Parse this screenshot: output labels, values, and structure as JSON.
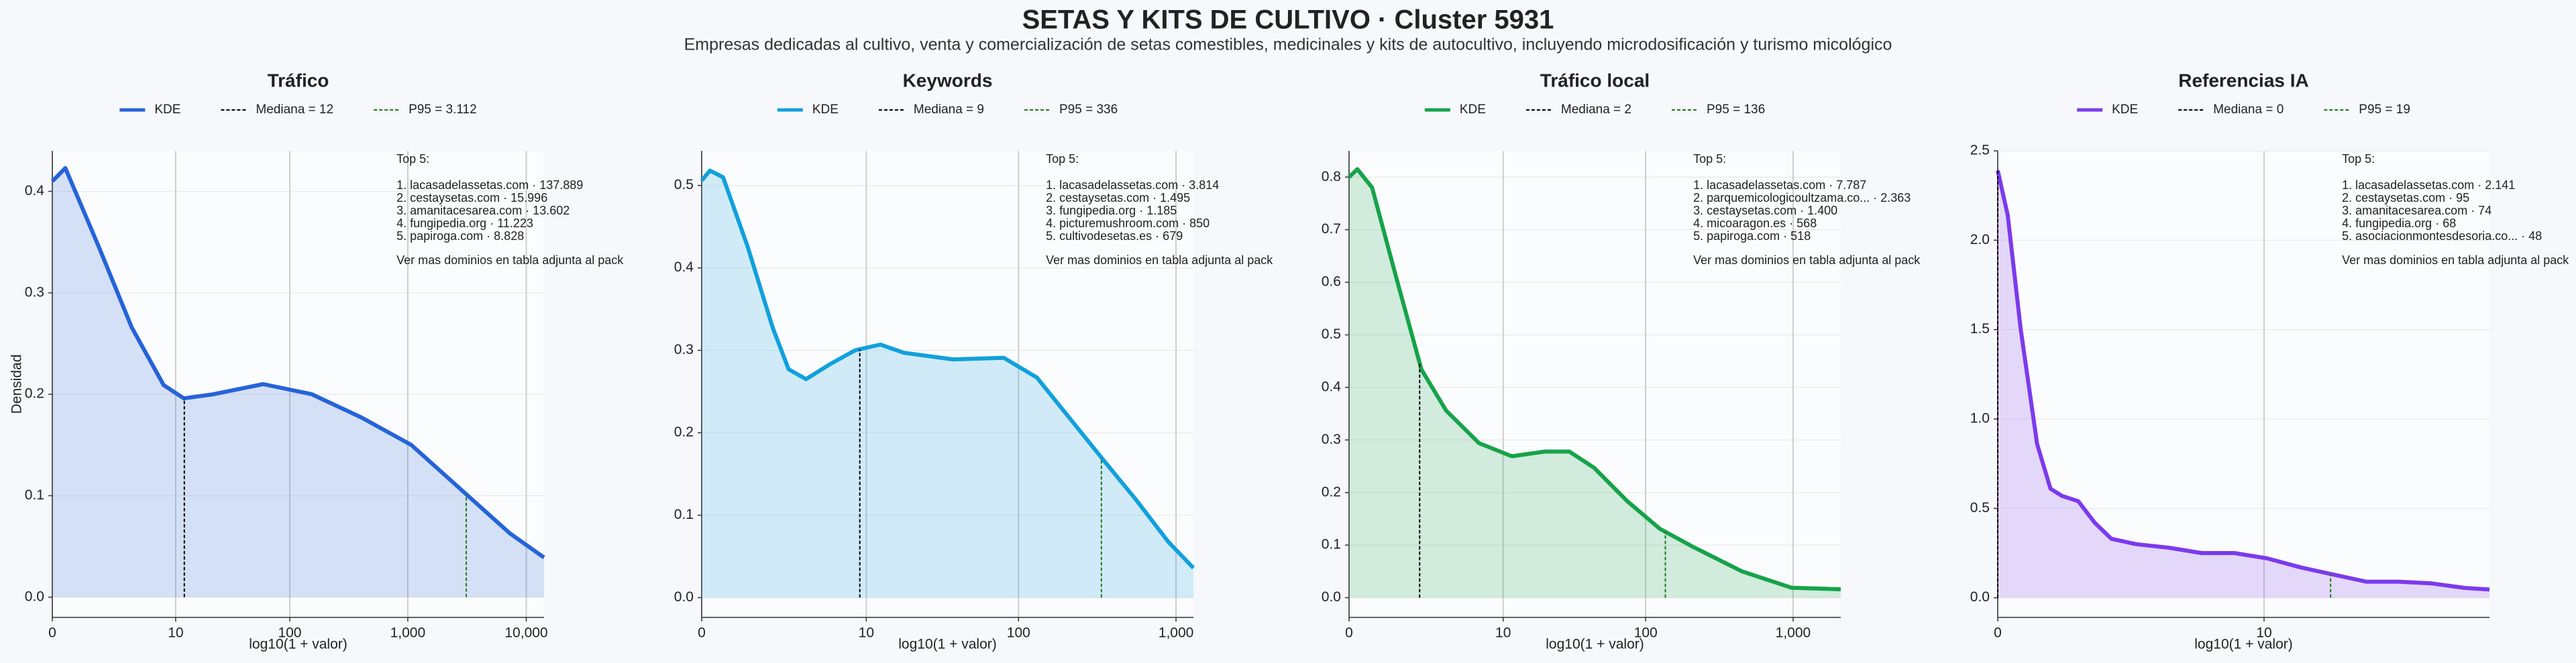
{
  "title": "SETAS Y KITS DE CULTIVO · Cluster 5931",
  "subtitle": "Empresas dedicadas al cultivo, venta y comercialización de setas comestibles, medicinales y kits de autocultivo, incluyendo microdosificación y turismo micológico",
  "chart_data": [
    {
      "type": "line",
      "title": "Tráfico",
      "xlabel": "log10(1 + valor)",
      "ylabel": "Densidad",
      "series": [
        {
          "name": "KDE",
          "color": "#2563d9",
          "x": [
            0,
            0.11,
            0.39,
            0.67,
            0.94,
            1.11,
            1.36,
            1.78,
            2.19,
            2.61,
            3.03,
            3.44,
            3.86,
            4.15
          ],
          "values": [
            0.41,
            0.423,
            0.346,
            0.266,
            0.209,
            0.196,
            0.2,
            0.21,
            0.2,
            0.177,
            0.15,
            0.107,
            0.063,
            0.039
          ]
        }
      ],
      "median": {
        "value": 1.114,
        "label": "Mediana = 12",
        "color": "#000000"
      },
      "p95": {
        "value": 3.493,
        "label": "P95 = 3.112",
        "color": "#1a7a1a"
      },
      "xlim": [
        0,
        4.15
      ],
      "xticks": [
        0,
        {
          "value": 1.041,
          "label": "10"
        },
        {
          "value": 2.004,
          "label": "100"
        },
        {
          "value": 3.0,
          "label": "1,000"
        },
        {
          "value": 4.0,
          "label": "10,000"
        }
      ],
      "ylim": [
        -0.02,
        0.44
      ],
      "yticks": [
        {
          "value": 0,
          "label": "0.0"
        },
        0.1,
        0.2,
        0.3,
        0.4
      ],
      "annotation": {
        "title": "Top 5:",
        "lines": [
          "1. lacasadelassetas.com · 137.889",
          "2. cestaysetas.com · 15.996",
          "3. amanitacesarea.com · 13.602",
          "4. fungipedia.org · 11.223",
          "5. papiroga.com · 8.828"
        ],
        "footer": "Ver mas dominios en tabla adjunta al pack"
      }
    },
    {
      "type": "line",
      "title": "Keywords",
      "xlabel": "log10(1 + valor)",
      "series": [
        {
          "name": "KDE",
          "color": "#12a0dc",
          "x": [
            0,
            0.052,
            0.135,
            0.29,
            0.45,
            0.55,
            0.66,
            0.81,
            0.97,
            1.13,
            1.28,
            1.59,
            1.91,
            2.12,
            2.33,
            2.54,
            2.75,
            2.95,
            3.11
          ],
          "values": [
            0.506,
            0.518,
            0.51,
            0.426,
            0.327,
            0.277,
            0.265,
            0.283,
            0.3,
            0.307,
            0.297,
            0.289,
            0.291,
            0.267,
            0.217,
            0.167,
            0.118,
            0.068,
            0.036
          ]
        }
      ],
      "median": {
        "value": 1.0,
        "label": "Mediana = 9",
        "color": "#000000"
      },
      "p95": {
        "value": 2.528,
        "label": "P95 = 336",
        "color": "#1a7a1a"
      },
      "xlim": [
        0,
        3.11
      ],
      "xticks": [
        0,
        {
          "value": 1.041,
          "label": "10"
        },
        {
          "value": 2.004,
          "label": "100"
        },
        {
          "value": 3.0,
          "label": "1,000"
        }
      ],
      "ylim": [
        -0.024,
        0.542
      ],
      "yticks": [
        {
          "value": 0,
          "label": "0.0"
        },
        0.1,
        0.2,
        0.3,
        0.4,
        0.5
      ],
      "annotation": {
        "title": "Top 5:",
        "lines": [
          "1. lacasadelassetas.com · 3.814",
          "2. cestaysetas.com · 1.495",
          "3. fungipedia.org · 1.185",
          "4. picturemushroom.com · 850",
          "5. cultivodesetas.es · 679"
        ],
        "footer": "Ver mas dominios en tabla adjunta al pack"
      }
    },
    {
      "type": "line",
      "title": "Tráfico local",
      "xlabel": "log10(1 + valor)",
      "series": [
        {
          "name": "KDE",
          "color": "#16a34a",
          "x": [
            0,
            0.056,
            0.156,
            0.322,
            0.489,
            0.656,
            0.878,
            1.1,
            1.322,
            1.489,
            1.656,
            1.878,
            2.1,
            2.322,
            2.656,
            2.989,
            3.322
          ],
          "values": [
            0.8,
            0.815,
            0.78,
            0.606,
            0.434,
            0.356,
            0.294,
            0.269,
            0.278,
            0.278,
            0.247,
            0.184,
            0.131,
            0.097,
            0.05,
            0.019,
            0.016
          ]
        }
      ],
      "median": {
        "value": 0.477,
        "label": "Mediana = 2",
        "color": "#000000"
      },
      "p95": {
        "value": 2.137,
        "label": "P95 = 136",
        "color": "#1a7a1a"
      },
      "xlim": [
        0,
        3.322
      ],
      "xticks": [
        0,
        {
          "value": 1.041,
          "label": "10"
        },
        {
          "value": 2.004,
          "label": "100"
        },
        {
          "value": 3.0,
          "label": "1,000"
        }
      ],
      "ylim": [
        -0.0375,
        0.85
      ],
      "yticks": [
        {
          "value": 0,
          "label": "0.0"
        },
        0.1,
        0.2,
        0.3,
        0.4,
        0.5,
        0.6,
        0.7,
        0.8
      ],
      "annotation": {
        "title": "Top 5:",
        "lines": [
          "1. lacasadelassetas.com · 7.787",
          "2. parquemicologicoultzama.co... · 2.363",
          "3. cestaysetas.com · 1.400",
          "4. micoaragon.es · 568",
          "5. papiroga.com · 518"
        ],
        "footer": "Ver mas dominios en tabla adjunta al pack"
      }
    },
    {
      "type": "line",
      "title": "Referencias IA",
      "xlabel": "log10(1 + valor)",
      "series": [
        {
          "name": "KDE",
          "color": "#7c3aed",
          "x": [
            0,
            0.039,
            0.09,
            0.154,
            0.206,
            0.251,
            0.315,
            0.379,
            0.444,
            0.54,
            0.668,
            0.797,
            0.925,
            1.054,
            1.183,
            1.311,
            1.44,
            1.568,
            1.697,
            1.825,
            1.922
          ],
          "values": [
            2.39,
            2.14,
            1.5,
            0.86,
            0.61,
            0.57,
            0.54,
            0.42,
            0.33,
            0.3,
            0.28,
            0.25,
            0.25,
            0.22,
            0.17,
            0.13,
            0.09,
            0.09,
            0.08,
            0.055,
            0.046
          ]
        }
      ],
      "median": {
        "value": 0,
        "label": "Mediana = 0",
        "color": "#000000"
      },
      "p95": {
        "value": 1.301,
        "label": "P95 = 19",
        "color": "#1a7a1a"
      },
      "xlim": [
        0,
        1.922
      ],
      "xticks": [
        0,
        {
          "value": 1.041,
          "label": "10"
        }
      ],
      "ylim": [
        -0.11,
        2.5
      ],
      "yticks": [
        {
          "value": 0,
          "label": "0.0"
        },
        0.5,
        {
          "value": 1,
          "label": "1.0"
        },
        1.5,
        {
          "value": 2,
          "label": "2.0"
        },
        2.5
      ],
      "annotation": {
        "title": "Top 5:",
        "lines": [
          "1. lacasadelassetas.com · 2.141",
          "2. cestaysetas.com · 95",
          "3. amanitacesarea.com · 74",
          "4. fungipedia.org · 68",
          "5. asociacionmontesdesoria.co... · 48"
        ],
        "footer": "Ver mas dominios en tabla adjunta al pack"
      }
    }
  ]
}
